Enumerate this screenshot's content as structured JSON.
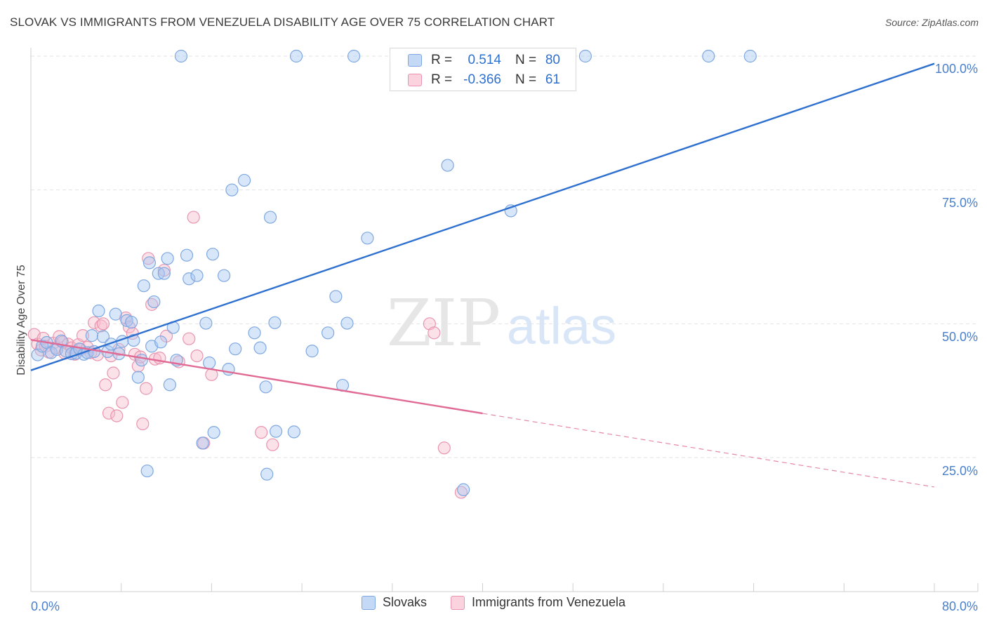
{
  "title": "SLOVAK VS IMMIGRANTS FROM VENEZUELA DISABILITY AGE OVER 75 CORRELATION CHART",
  "source": "Source: ZipAtlas.com",
  "watermark": {
    "zip": "ZIP",
    "atlas": "atlas"
  },
  "colors": {
    "blue_fill": "#a9c8f2",
    "blue_stroke": "#7fa8e0",
    "blue_line": "#2e70cf",
    "pink_fill": "#f6bccd",
    "pink_stroke": "#e995b0",
    "pink_line": "#e06a94",
    "axis_text": "#4a7fcc",
    "grid": "#e2e2e2"
  },
  "stats": {
    "blue": {
      "r_label": "R =",
      "r_value": "0.514",
      "n_label": "N =",
      "n_value": "80"
    },
    "pink": {
      "r_label": "R =",
      "r_value": "-0.366",
      "n_label": "N =",
      "n_value": "61"
    }
  },
  "chart_data": {
    "type": "scatter",
    "title": "SLOVAK VS IMMIGRANTS FROM VENEZUELA DISABILITY AGE OVER 75 CORRELATION CHART",
    "xlabel": "",
    "ylabel": "Disability Age Over 75",
    "xlim": [
      0,
      80
    ],
    "ylim": [
      2,
      100
    ],
    "x_tick_labels": [
      "0.0%",
      "80.0%"
    ],
    "y_ticks": [
      25,
      50,
      75,
      100
    ],
    "y_tick_labels": [
      "25.0%",
      "50.0%",
      "75.0%",
      "100.0%"
    ],
    "grid": true,
    "legend_position": "bottom",
    "series": [
      {
        "name": "Slovaks",
        "color": "blue",
        "trend": {
          "x0": 0,
          "y0": 41.3,
          "x1": 80,
          "y1": 98.6,
          "solid_until": 80
        },
        "points": [
          [
            0.6,
            44.2
          ],
          [
            1.0,
            45.8
          ],
          [
            1.4,
            46.5
          ],
          [
            1.8,
            44.6
          ],
          [
            2.3,
            45.2
          ],
          [
            2.7,
            46.8
          ],
          [
            3.1,
            44.9
          ],
          [
            3.6,
            44.4
          ],
          [
            4.0,
            44.5
          ],
          [
            4.3,
            45.3
          ],
          [
            4.7,
            44.3
          ],
          [
            5.0,
            44.6
          ],
          [
            5.4,
            47.8
          ],
          [
            5.6,
            44.8
          ],
          [
            6.0,
            52.4
          ],
          [
            6.4,
            47.6
          ],
          [
            6.8,
            44.8
          ],
          [
            7.1,
            46.2
          ],
          [
            7.5,
            51.8
          ],
          [
            7.8,
            44.4
          ],
          [
            8.1,
            46.7
          ],
          [
            8.5,
            50.6
          ],
          [
            8.9,
            50.3
          ],
          [
            9.1,
            46.9
          ],
          [
            9.5,
            40.0
          ],
          [
            9.8,
            43.2
          ],
          [
            10.0,
            57.1
          ],
          [
            10.3,
            22.5
          ],
          [
            10.5,
            61.4
          ],
          [
            10.7,
            45.8
          ],
          [
            10.9,
            54.1
          ],
          [
            11.3,
            59.4
          ],
          [
            11.5,
            46.6
          ],
          [
            11.8,
            59.4
          ],
          [
            12.1,
            62.2
          ],
          [
            12.3,
            38.6
          ],
          [
            12.6,
            49.3
          ],
          [
            12.9,
            43.2
          ],
          [
            13.3,
            100.0
          ],
          [
            13.8,
            62.8
          ],
          [
            14.0,
            58.4
          ],
          [
            14.7,
            59.0
          ],
          [
            15.2,
            27.7
          ],
          [
            15.5,
            50.1
          ],
          [
            15.8,
            42.7
          ],
          [
            16.1,
            63.0
          ],
          [
            16.2,
            29.7
          ],
          [
            17.1,
            59.0
          ],
          [
            17.5,
            41.5
          ],
          [
            17.8,
            75.0
          ],
          [
            18.1,
            45.3
          ],
          [
            18.9,
            76.8
          ],
          [
            19.8,
            48.3
          ],
          [
            20.3,
            45.5
          ],
          [
            20.8,
            38.2
          ],
          [
            20.9,
            21.9
          ],
          [
            21.2,
            69.9
          ],
          [
            21.6,
            50.2
          ],
          [
            21.7,
            29.9
          ],
          [
            23.3,
            29.8
          ],
          [
            23.5,
            100.0
          ],
          [
            24.9,
            44.9
          ],
          [
            26.3,
            48.3
          ],
          [
            27.0,
            55.1
          ],
          [
            27.6,
            38.5
          ],
          [
            28.0,
            50.1
          ],
          [
            28.6,
            100.0
          ],
          [
            29.8,
            66.0
          ],
          [
            36.9,
            79.6
          ],
          [
            38.3,
            19.0
          ],
          [
            42.5,
            71.1
          ],
          [
            49.1,
            100.0
          ],
          [
            60.0,
            100.0
          ],
          [
            63.7,
            100.0
          ]
        ]
      },
      {
        "name": "Immigrants from Venezuela",
        "color": "pink",
        "trend": {
          "x0": 0,
          "y0": 47.0,
          "x1": 80,
          "y1": 19.5,
          "solid_until": 40
        },
        "points": [
          [
            0.3,
            48.0
          ],
          [
            0.6,
            46.2
          ],
          [
            0.9,
            45.1
          ],
          [
            1.1,
            47.3
          ],
          [
            1.3,
            45.8
          ],
          [
            1.6,
            44.7
          ],
          [
            2.0,
            46.4
          ],
          [
            2.2,
            45.5
          ],
          [
            2.5,
            47.6
          ],
          [
            2.8,
            46.6
          ],
          [
            3.0,
            44.5
          ],
          [
            3.3,
            46.2
          ],
          [
            3.6,
            45.5
          ],
          [
            3.9,
            44.3
          ],
          [
            4.2,
            46.1
          ],
          [
            4.4,
            45.2
          ],
          [
            4.6,
            47.8
          ],
          [
            5.0,
            45.6
          ],
          [
            5.3,
            44.6
          ],
          [
            5.6,
            50.2
          ],
          [
            5.9,
            44.2
          ],
          [
            6.2,
            49.6
          ],
          [
            6.4,
            50.0
          ],
          [
            6.6,
            38.6
          ],
          [
            6.9,
            33.3
          ],
          [
            7.1,
            44.0
          ],
          [
            7.3,
            40.8
          ],
          [
            7.6,
            32.8
          ],
          [
            7.8,
            45.2
          ],
          [
            8.1,
            35.3
          ],
          [
            8.4,
            51.1
          ],
          [
            8.7,
            49.4
          ],
          [
            9.0,
            48.2
          ],
          [
            9.2,
            44.3
          ],
          [
            9.5,
            42.1
          ],
          [
            9.7,
            43.8
          ],
          [
            9.9,
            31.3
          ],
          [
            10.2,
            37.9
          ],
          [
            10.4,
            62.2
          ],
          [
            10.7,
            53.6
          ],
          [
            11.0,
            43.4
          ],
          [
            11.4,
            43.6
          ],
          [
            11.8,
            60.0
          ],
          [
            12.0,
            47.7
          ],
          [
            13.1,
            42.9
          ],
          [
            14.0,
            47.2
          ],
          [
            14.4,
            69.9
          ],
          [
            14.7,
            44.0
          ],
          [
            15.3,
            27.7
          ],
          [
            16.0,
            40.5
          ],
          [
            20.4,
            29.7
          ],
          [
            21.4,
            27.4
          ],
          [
            35.3,
            50.0
          ],
          [
            35.7,
            48.3
          ],
          [
            36.6,
            26.8
          ],
          [
            38.1,
            18.5
          ]
        ]
      }
    ]
  },
  "legend": {
    "items": [
      {
        "label": "Slovaks"
      },
      {
        "label": "Immigrants from Venezuela"
      }
    ]
  }
}
